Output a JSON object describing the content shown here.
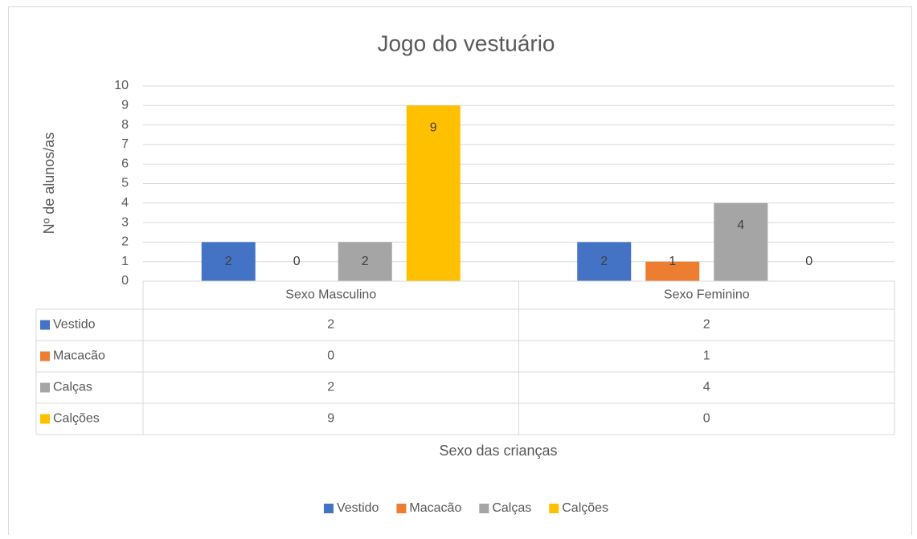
{
  "chart_data": {
    "type": "bar",
    "title": "Jogo do vestuário",
    "x_label": "Sexo das crianças",
    "y_label": "Nº de alunos/as",
    "categories": [
      "Sexo Masculino",
      "Sexo Feminino"
    ],
    "series": [
      {
        "name": "Vestido",
        "color": "#4472c4",
        "values": [
          2,
          2
        ]
      },
      {
        "name": "Macacão",
        "color": "#ed7d31",
        "values": [
          0,
          1
        ]
      },
      {
        "name": "Calças",
        "color": "#a5a5a5",
        "values": [
          2,
          4
        ]
      },
      {
        "name": "Calções",
        "color": "#ffc000",
        "values": [
          9,
          0
        ]
      }
    ],
    "ylim": [
      0,
      10
    ],
    "yticks": [
      0,
      1,
      2,
      3,
      4,
      5,
      6,
      7,
      8,
      9,
      10
    ],
    "grid": true,
    "data_table": true,
    "legend": "bottom"
  }
}
